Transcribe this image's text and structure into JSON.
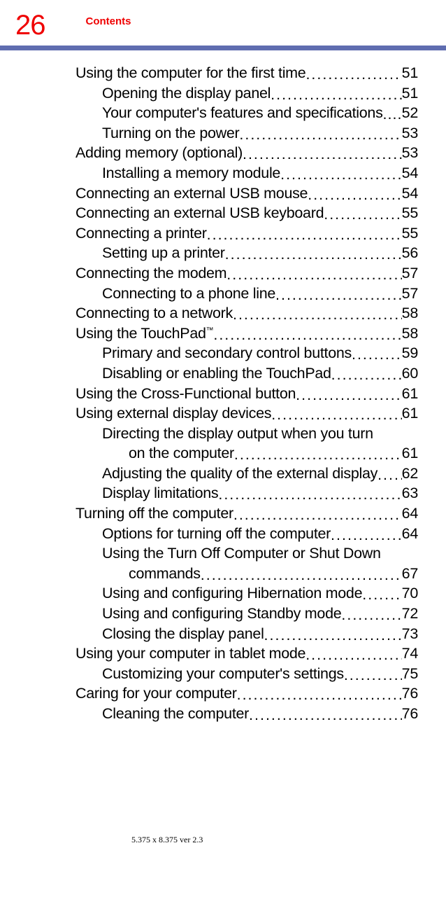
{
  "page_number": "26",
  "section_title": "Contents",
  "colors": {
    "accent": "#ef0000",
    "bar": "#5f6db0",
    "text": "#000000",
    "bg": "#ffffff"
  },
  "typography": {
    "page_num_fontsize": 40,
    "section_title_fontsize": 15,
    "toc_fontsize": 21.5,
    "footer_fontsize": 12
  },
  "footer": "5.375 x 8.375 ver 2.3",
  "toc": [
    {
      "level": 0,
      "label": "Using the computer for the first time",
      "page": "51"
    },
    {
      "level": 1,
      "label": "Opening the display panel",
      "page": "51"
    },
    {
      "level": 1,
      "label": "Your computer's features and specifications",
      "page": "52",
      "tight": true
    },
    {
      "level": 1,
      "label": "Turning on the power",
      "page": "53"
    },
    {
      "level": 0,
      "label": "Adding memory (optional)",
      "page": "53"
    },
    {
      "level": 1,
      "label": "Installing a memory module",
      "page": "54"
    },
    {
      "level": 0,
      "label": "Connecting an external USB mouse",
      "page": "54"
    },
    {
      "level": 0,
      "label": "Connecting an external USB keyboard",
      "page": "55"
    },
    {
      "level": 0,
      "label": "Connecting a printer",
      "page": "55"
    },
    {
      "level": 1,
      "label": "Setting up a printer",
      "page": "56"
    },
    {
      "level": 0,
      "label": "Connecting the modem",
      "page": "57"
    },
    {
      "level": 1,
      "label": "Connecting to a phone line",
      "page": "57"
    },
    {
      "level": 0,
      "label": "Connecting to a network",
      "page": "58"
    },
    {
      "level": 0,
      "label": "Using the TouchPad",
      "tm": true,
      "page": "58"
    },
    {
      "level": 1,
      "label": "Primary and secondary control buttons",
      "page": "59"
    },
    {
      "level": 1,
      "label": "Disabling or enabling the TouchPad",
      "page": "60"
    },
    {
      "level": 0,
      "label": "Using the Cross-Functional button",
      "page": "61"
    },
    {
      "level": 0,
      "label": "Using external display devices",
      "page": "61"
    },
    {
      "level": 1,
      "label": "Directing the display output when you turn",
      "page": "",
      "nowrap": true
    },
    {
      "level": 2,
      "label": "on the computer",
      "page": "61"
    },
    {
      "level": 1,
      "label": "Adjusting the quality of the external display",
      "page": "62"
    },
    {
      "level": 1,
      "label": "Display limitations",
      "page": "63"
    },
    {
      "level": 0,
      "label": "Turning off the computer",
      "page": "64"
    },
    {
      "level": 1,
      "label": "Options for turning off the computer",
      "page": "64"
    },
    {
      "level": 1,
      "label": "Using the Turn Off Computer or Shut Down",
      "page": "",
      "nowrap": true
    },
    {
      "level": 2,
      "label": "commands",
      "page": "67"
    },
    {
      "level": 1,
      "label": "Using and configuring Hibernation mode",
      "page": "70"
    },
    {
      "level": 1,
      "label": "Using and configuring Standby mode",
      "page": "72"
    },
    {
      "level": 1,
      "label": "Closing the display panel",
      "page": "73"
    },
    {
      "level": 0,
      "label": "Using your computer in tablet mode",
      "page": "74"
    },
    {
      "level": 1,
      "label": "Customizing your computer's settings",
      "page": "75"
    },
    {
      "level": 0,
      "label": "Caring for your computer",
      "page": "76"
    },
    {
      "level": 1,
      "label": "Cleaning the computer",
      "page": "76"
    }
  ]
}
